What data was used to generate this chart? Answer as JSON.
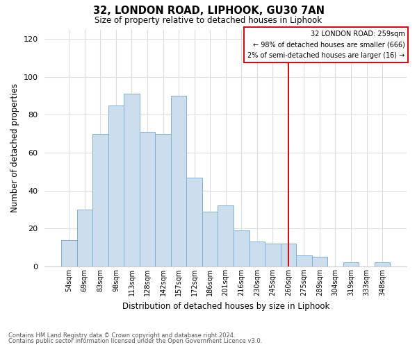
{
  "title": "32, LONDON ROAD, LIPHOOK, GU30 7AN",
  "subtitle": "Size of property relative to detached houses in Liphook",
  "xlabel": "Distribution of detached houses by size in Liphook",
  "ylabel": "Number of detached properties",
  "bar_labels": [
    "54sqm",
    "69sqm",
    "83sqm",
    "98sqm",
    "113sqm",
    "128sqm",
    "142sqm",
    "157sqm",
    "172sqm",
    "186sqm",
    "201sqm",
    "216sqm",
    "230sqm",
    "245sqm",
    "260sqm",
    "275sqm",
    "289sqm",
    "304sqm",
    "319sqm",
    "333sqm",
    "348sqm"
  ],
  "bar_values": [
    14,
    30,
    70,
    85,
    91,
    71,
    70,
    90,
    47,
    29,
    32,
    19,
    13,
    12,
    12,
    6,
    5,
    0,
    2,
    0,
    2
  ],
  "bar_color": "#ccdded",
  "bar_edge_color": "#7fb0d0",
  "vline_x_index": 14,
  "vline_color": "#cc1111",
  "legend_line1": "32 LONDON ROAD: 259sqm",
  "legend_line2": "← 98% of detached houses are smaller (666)",
  "legend_line3": "2% of semi-detached houses are larger (16) →",
  "ylim": [
    0,
    125
  ],
  "yticks": [
    0,
    20,
    40,
    60,
    80,
    100,
    120
  ],
  "footnote1": "Contains HM Land Registry data © Crown copyright and database right 2024.",
  "footnote2": "Contains public sector information licensed under the Open Government Licence v3.0.",
  "bg_color": "#ffffff",
  "plot_bg_color": "#ffffff",
  "grid_color": "#dddddd"
}
